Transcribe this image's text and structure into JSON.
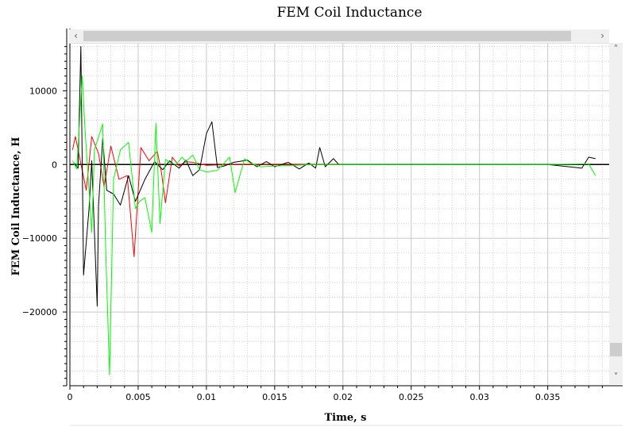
{
  "chart_data": {
    "type": "line",
    "title": "FEM Coil Inductance",
    "xlabel": "Time, s",
    "ylabel": "FEM Coil Inductance, H",
    "xlim": [
      0,
      0.0395
    ],
    "ylim": [
      -30000,
      16500
    ],
    "x_ticks": [
      0,
      0.005,
      0.01,
      0.015,
      0.02,
      0.025,
      0.03,
      0.035
    ],
    "x_tick_labels": [
      "0",
      "0.005",
      "0.01",
      "0.015",
      "0.02",
      "0.025",
      "0.03",
      "0.035"
    ],
    "y_ticks": [
      10000,
      0,
      -10000,
      -20000
    ],
    "y_tick_labels": [
      "10000",
      "0",
      "−10000",
      "−20000"
    ],
    "grid": true,
    "series": [
      {
        "color": "#ff0000",
        "x": [
          0.0002,
          0.0004,
          0.0012,
          0.0016,
          0.0021,
          0.0025,
          0.003,
          0.0036,
          0.0042,
          0.0047,
          0.0052,
          0.0058,
          0.0064,
          0.0067,
          0.007,
          0.0075,
          0.008,
          0.0085,
          0.009,
          0.01,
          0.012,
          0.015,
          0.02
        ],
        "values": [
          2000,
          3800,
          -3500,
          3800,
          1500,
          -3000,
          2500,
          -2000,
          -1500,
          -12500,
          2300,
          500,
          1800,
          -1000,
          -5200,
          1000,
          -200,
          400,
          300,
          -100,
          0,
          0,
          0
        ]
      },
      {
        "color": "#000000",
        "x": [
          0.0003,
          0.0006,
          0.0008,
          0.001,
          0.0014,
          0.0016,
          0.002,
          0.0021,
          0.0024,
          0.0027,
          0.0032,
          0.0037,
          0.0043,
          0.0048,
          0.0055,
          0.0062,
          0.0068,
          0.0073,
          0.008,
          0.0085,
          0.009,
          0.0095,
          0.01,
          0.0104,
          0.0108,
          0.0113,
          0.012,
          0.013,
          0.0137,
          0.0144,
          0.015,
          0.016,
          0.0168,
          0.0175,
          0.018,
          0.0183,
          0.0187,
          0.0193,
          0.0197,
          0.022,
          0.03,
          0.035,
          0.0375,
          0.038,
          0.0385
        ],
        "values": [
          200,
          -500,
          16000,
          -15000,
          -6000,
          500,
          -19200,
          -5500,
          3500,
          -3500,
          -4000,
          -5500,
          -1500,
          -5000,
          -2000,
          400,
          -700,
          500,
          -500,
          600,
          -1500,
          -700,
          4200,
          5800,
          -400,
          -200,
          300,
          600,
          -300,
          400,
          -300,
          300,
          -600,
          200,
          -500,
          2300,
          -300,
          800,
          0,
          0,
          0,
          0,
          -500,
          1000,
          800
        ]
      },
      {
        "color": "#00ff00",
        "x": [
          0.0002,
          0.0005,
          0.0009,
          0.0011,
          0.0016,
          0.0018,
          0.0024,
          0.0026,
          0.0029,
          0.0032,
          0.0037,
          0.0043,
          0.0048,
          0.0051,
          0.0055,
          0.006,
          0.0063,
          0.0066,
          0.007,
          0.0074,
          0.0078,
          0.0082,
          0.0085,
          0.009,
          0.0095,
          0.01,
          0.0108,
          0.0117,
          0.0121,
          0.0128,
          0.0132,
          0.014,
          0.015,
          0.018,
          0.025,
          0.03,
          0.035,
          0.038,
          0.0385
        ],
        "values": [
          500,
          -600,
          12000,
          5000,
          -9200,
          2000,
          5500,
          -10000,
          -28500,
          -2000,
          2000,
          3000,
          -6000,
          -5000,
          -4500,
          -9200,
          5600,
          -8000,
          700,
          200,
          0,
          1000,
          400,
          1300,
          -700,
          -1000,
          -800,
          1000,
          -3800,
          800,
          200,
          -300,
          -200,
          0,
          0,
          0,
          0,
          100,
          -1500
        ]
      }
    ]
  },
  "scrollbars": {
    "left_arrow": "‹",
    "right_arrow": "›",
    "up_arrow": "˄",
    "down_arrow": "˅"
  }
}
